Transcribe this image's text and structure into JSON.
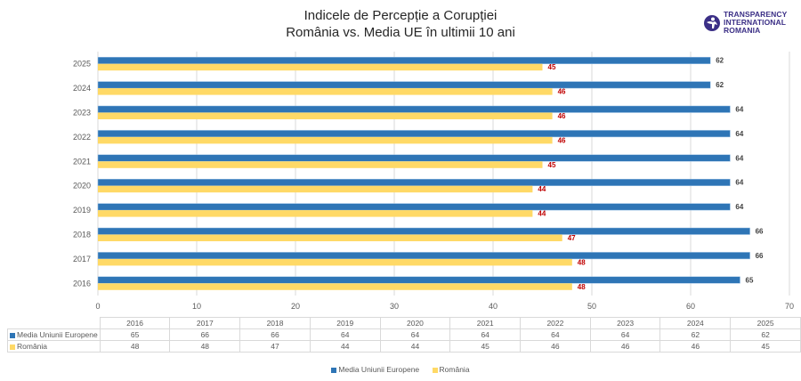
{
  "header": {
    "title_line1": "Indicele de Percepție a Corupției",
    "title_line2": "România vs. Media UE în ultimii 10 ani",
    "logo_line1": "TRANSPARENCY",
    "logo_line2": "INTERNATIONAL",
    "logo_line3": "ROMANIA",
    "logo_icon": "globe-figure-icon"
  },
  "chart_data": {
    "type": "bar",
    "orientation": "horizontal",
    "title": "Indicele de Percepție a Corupției — România vs. Media UE în ultimii 10 ani",
    "categories": [
      "2025",
      "2024",
      "2023",
      "2022",
      "2021",
      "2020",
      "2019",
      "2018",
      "2017",
      "2016"
    ],
    "series": [
      {
        "name": "Media Uniunii Europene",
        "color": "#2e75b6",
        "label_color": "#404040",
        "values": [
          62,
          62,
          64,
          64,
          64,
          64,
          64,
          66,
          66,
          65
        ]
      },
      {
        "name": "România",
        "color": "#ffd966",
        "label_color": "#c00000",
        "values": [
          45,
          46,
          46,
          46,
          45,
          44,
          44,
          47,
          48,
          48
        ]
      }
    ],
    "xlim": [
      0,
      70
    ],
    "xticks": [
      "0",
      "10",
      "20",
      "30",
      "40",
      "50",
      "60",
      "70"
    ],
    "grid": true,
    "legend_position": "bottom",
    "xlabel": "",
    "ylabel": ""
  },
  "data_table": {
    "columns": [
      "2016",
      "2017",
      "2018",
      "2019",
      "2020",
      "2021",
      "2022",
      "2023",
      "2024",
      "2025"
    ],
    "rows": [
      {
        "label": "Media Uniunii Europene",
        "color": "#2e75b6",
        "values": [
          "65",
          "66",
          "66",
          "64",
          "64",
          "64",
          "64",
          "64",
          "62",
          "62"
        ]
      },
      {
        "label": "România",
        "color": "#ffd966",
        "values": [
          "48",
          "48",
          "47",
          "44",
          "44",
          "45",
          "46",
          "46",
          "46",
          "45"
        ]
      }
    ]
  },
  "legend": {
    "items": [
      {
        "label": "Media Uniunii Europene",
        "color": "#2e75b6"
      },
      {
        "label": "România",
        "color": "#ffd966"
      }
    ]
  }
}
